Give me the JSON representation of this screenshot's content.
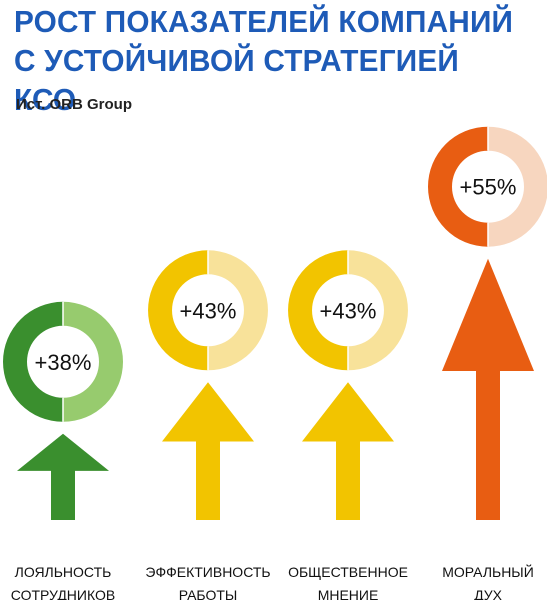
{
  "title_line1": "РОСТ ПОКАЗАТЕЛЕЙ КОМПАНИЙ",
  "title_line2": "С УСТОЙЧИВОЙ СТРАТЕГИЕЙ КСО",
  "source": "Ист. ORB Group",
  "chart_data": {
    "type": "bar",
    "categories": [
      [
        "ЛОЯЛЬНОСТЬ",
        "СОТРУДНИКОВ"
      ],
      [
        "ЭФФЕКТИВНОСТЬ",
        "РАБОТЫ"
      ],
      [
        "ОБЩЕСТВЕННОЕ",
        "МНЕНИЕ"
      ],
      [
        "МОРАЛЬНЫЙ",
        "ДУХ"
      ]
    ],
    "values": [
      38,
      43,
      43,
      55
    ],
    "value_labels": [
      "+38%",
      "+43%",
      "+43%",
      "+55%"
    ],
    "colors": [
      {
        "main": "#3A8F2E",
        "light": "#97CB6E"
      },
      {
        "main": "#F2C400",
        "light": "#F8E29A"
      },
      {
        "main": "#F2C400",
        "light": "#F8E29A"
      },
      {
        "main": "#E85D12",
        "light": "#F7D6BF"
      }
    ]
  }
}
